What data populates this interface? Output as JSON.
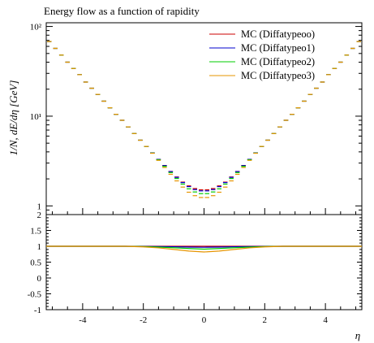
{
  "chart_data": {
    "type": "line",
    "title": "Energy flow as a function of rapidity",
    "xlabel": "η",
    "ylabel": "1/N, dE/dη [GeV]",
    "xlim": [
      -5.2,
      5.2
    ],
    "ylim": [
      0.8,
      110
    ],
    "yscale": "log",
    "ratio_ylim": [
      -1,
      2
    ],
    "x_ticks": [
      -4,
      -2,
      0,
      2,
      4
    ],
    "x_tick_labels": [
      "-4",
      "-2",
      "0",
      "2",
      "4"
    ],
    "y_tick_labels": [
      "1",
      "10¹",
      "10²"
    ],
    "ratio_tick_labels": [
      "-1",
      "-0.5",
      "0",
      "0.5",
      "1",
      "1.5",
      "2"
    ],
    "legend_position": "top-right",
    "grid": false,
    "bin_width": 0.2,
    "series": [
      {
        "name": "MC (Diffatypeoo)",
        "color": "#cc0000",
        "x": [
          -5.1,
          -4.9,
          -4.7,
          -4.5,
          -4.3,
          -4.1,
          -3.9,
          -3.7,
          -3.5,
          -3.3,
          -3.1,
          -2.9,
          -2.7,
          -2.5,
          -2.3,
          -2.1,
          -1.9,
          -1.7,
          -1.5,
          -1.3,
          -1.1,
          -0.9,
          -0.7,
          -0.5,
          -0.3,
          -0.1,
          0.1,
          0.3,
          0.5,
          0.7,
          0.9,
          1.1,
          1.3,
          1.5,
          1.7,
          1.9,
          2.1,
          2.3,
          2.5,
          2.7,
          2.9,
          3.1,
          3.3,
          3.5,
          3.7,
          3.9,
          4.1,
          4.3,
          4.5,
          4.7,
          4.9,
          5.1
        ],
        "y": [
          68,
          57,
          48,
          40,
          34,
          29,
          24,
          20.5,
          17.5,
          14.7,
          12.4,
          10.5,
          9,
          7.6,
          6.4,
          5.4,
          4.6,
          3.9,
          3.3,
          2.82,
          2.42,
          2.1,
          1.84,
          1.67,
          1.56,
          1.51,
          1.51,
          1.56,
          1.67,
          1.84,
          2.1,
          2.42,
          2.82,
          3.3,
          3.9,
          4.6,
          5.4,
          6.4,
          7.6,
          9,
          10.5,
          12.4,
          14.7,
          17.5,
          20.5,
          24,
          29,
          34,
          40,
          48,
          57,
          68
        ]
      },
      {
        "name": "MC (Diffatypeo1)",
        "color": "#0000cc",
        "x": [
          -5.1,
          -4.9,
          -4.7,
          -4.5,
          -4.3,
          -4.1,
          -3.9,
          -3.7,
          -3.5,
          -3.3,
          -3.1,
          -2.9,
          -2.7,
          -2.5,
          -2.3,
          -2.1,
          -1.9,
          -1.7,
          -1.5,
          -1.3,
          -1.1,
          -0.9,
          -0.7,
          -0.5,
          -0.3,
          -0.1,
          0.1,
          0.3,
          0.5,
          0.7,
          0.9,
          1.1,
          1.3,
          1.5,
          1.7,
          1.9,
          2.1,
          2.3,
          2.5,
          2.7,
          2.9,
          3.1,
          3.3,
          3.5,
          3.7,
          3.9,
          4.1,
          4.3,
          4.5,
          4.7,
          4.9,
          5.1
        ],
        "y": [
          68,
          57,
          48,
          40,
          34,
          29,
          24,
          20.5,
          17.5,
          14.7,
          12.4,
          10.5,
          9,
          7.6,
          6.4,
          5.4,
          4.6,
          3.9,
          3.3,
          2.81,
          2.41,
          2.08,
          1.82,
          1.64,
          1.52,
          1.47,
          1.47,
          1.52,
          1.64,
          1.82,
          2.08,
          2.41,
          2.81,
          3.3,
          3.9,
          4.6,
          5.4,
          6.4,
          7.6,
          9,
          10.5,
          12.4,
          14.7,
          17.5,
          20.5,
          24,
          29,
          34,
          40,
          48,
          57,
          68
        ]
      },
      {
        "name": "MC (Diffatypeo2)",
        "color": "#00cc00",
        "x": [
          -5.1,
          -4.9,
          -4.7,
          -4.5,
          -4.3,
          -4.1,
          -3.9,
          -3.7,
          -3.5,
          -3.3,
          -3.1,
          -2.9,
          -2.7,
          -2.5,
          -2.3,
          -2.1,
          -1.9,
          -1.7,
          -1.5,
          -1.3,
          -1.1,
          -0.9,
          -0.7,
          -0.5,
          -0.3,
          -0.1,
          0.1,
          0.3,
          0.5,
          0.7,
          0.9,
          1.1,
          1.3,
          1.5,
          1.7,
          1.9,
          2.1,
          2.3,
          2.5,
          2.7,
          2.9,
          3.1,
          3.3,
          3.5,
          3.7,
          3.9,
          4.1,
          4.3,
          4.5,
          4.7,
          4.9,
          5.1
        ],
        "y": [
          68,
          57,
          48,
          40,
          34,
          29,
          24,
          20.5,
          17.5,
          14.7,
          12.4,
          10.5,
          9,
          7.6,
          6.4,
          5.4,
          4.6,
          3.88,
          3.27,
          2.76,
          2.35,
          2.02,
          1.75,
          1.55,
          1.43,
          1.37,
          1.37,
          1.43,
          1.55,
          1.75,
          2.02,
          2.35,
          2.76,
          3.27,
          3.88,
          4.6,
          5.4,
          6.4,
          7.6,
          9,
          10.5,
          12.4,
          14.7,
          17.5,
          20.5,
          24,
          29,
          34,
          40,
          48,
          57,
          68
        ]
      },
      {
        "name": "MC (Diffatypeo3)",
        "color": "#e69500",
        "x": [
          -5.1,
          -4.9,
          -4.7,
          -4.5,
          -4.3,
          -4.1,
          -3.9,
          -3.7,
          -3.5,
          -3.3,
          -3.1,
          -2.9,
          -2.7,
          -2.5,
          -2.3,
          -2.1,
          -1.9,
          -1.7,
          -1.5,
          -1.3,
          -1.1,
          -0.9,
          -0.7,
          -0.5,
          -0.3,
          -0.1,
          0.1,
          0.3,
          0.5,
          0.7,
          0.9,
          1.1,
          1.3,
          1.5,
          1.7,
          1.9,
          2.1,
          2.3,
          2.5,
          2.7,
          2.9,
          3.1,
          3.3,
          3.5,
          3.7,
          3.9,
          4.1,
          4.3,
          4.5,
          4.7,
          4.9,
          5.1
        ],
        "y": [
          68,
          57,
          48,
          40,
          34,
          29,
          24,
          20.5,
          17.5,
          14.7,
          12.4,
          10.5,
          9,
          7.6,
          6.4,
          5.4,
          4.6,
          3.86,
          3.22,
          2.68,
          2.25,
          1.9,
          1.62,
          1.42,
          1.3,
          1.24,
          1.24,
          1.3,
          1.42,
          1.62,
          1.9,
          2.25,
          2.68,
          3.22,
          3.86,
          4.6,
          5.4,
          6.4,
          7.6,
          9,
          10.5,
          12.4,
          14.7,
          17.5,
          20.5,
          24,
          29,
          34,
          40,
          48,
          57,
          68
        ]
      }
    ],
    "ratio_series": [
      {
        "name": "MC (Diffatypeoo)",
        "color": "#cc0000",
        "x": [
          -5.2,
          -2.6,
          -2.0,
          -1.5,
          -1.0,
          -0.5,
          0,
          0.5,
          1.0,
          1.5,
          2.0,
          2.6,
          5.2
        ],
        "y": [
          1,
          1,
          1,
          1,
          1,
          1,
          1,
          1,
          1,
          1,
          1,
          1,
          1
        ]
      },
      {
        "name": "MC (Diffatypeo1)",
        "color": "#0000cc",
        "x": [
          -5.2,
          -2.6,
          -2.0,
          -1.5,
          -1.0,
          -0.5,
          0,
          0.5,
          1.0,
          1.5,
          2.0,
          2.6,
          5.2
        ],
        "y": [
          1,
          1,
          0.995,
          0.99,
          0.985,
          0.975,
          0.97,
          0.975,
          0.985,
          0.99,
          0.995,
          1,
          1
        ]
      },
      {
        "name": "MC (Diffatypeo2)",
        "color": "#00cc00",
        "x": [
          -5.2,
          -2.6,
          -2.0,
          -1.5,
          -1.0,
          -0.5,
          0,
          0.5,
          1.0,
          1.5,
          2.0,
          2.6,
          5.2
        ],
        "y": [
          1,
          1,
          0.99,
          0.975,
          0.955,
          0.93,
          0.91,
          0.93,
          0.955,
          0.975,
          0.99,
          1,
          1
        ]
      },
      {
        "name": "MC (Diffatypeo3)",
        "color": "#e69500",
        "x": [
          -5.2,
          -2.6,
          -2.0,
          -1.5,
          -1.0,
          -0.5,
          0,
          0.5,
          1.0,
          1.5,
          2.0,
          2.6,
          5.2
        ],
        "y": [
          1,
          1,
          0.98,
          0.95,
          0.9,
          0.85,
          0.82,
          0.85,
          0.9,
          0.95,
          0.98,
          1,
          1
        ]
      }
    ]
  }
}
